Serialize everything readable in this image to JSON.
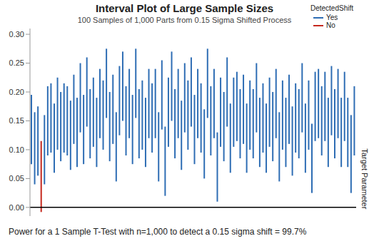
{
  "chart_data": {
    "type": "interval",
    "title": "Interval Plot of Large Sample Sizes",
    "subtitle": "100 Samples of 1,000 Parts from 0.15 Sigma Shifted Process",
    "annotation": "Power for a 1 Sample T-Test with n=1,000 to detect a 0.15 sigma shift = 99.7%",
    "categories": [
      null,
      null,
      null,
      null,
      null,
      null,
      null,
      null,
      null,
      null,
      null,
      null,
      null,
      null,
      null,
      null,
      null,
      null,
      null,
      null,
      null,
      null,
      null,
      null,
      null,
      null,
      null,
      null,
      null,
      null,
      null,
      null,
      null,
      null,
      null,
      null,
      null,
      null,
      null,
      null,
      null,
      null,
      null,
      null,
      null,
      null,
      null,
      null,
      null,
      null,
      null,
      null,
      null,
      null,
      null,
      null,
      null,
      null,
      null,
      null,
      null,
      null,
      null,
      null,
      null,
      null,
      null,
      null,
      null,
      null,
      null,
      null,
      null,
      null,
      null,
      null,
      null,
      null,
      null,
      null,
      null,
      null,
      null,
      null,
      null,
      null,
      null,
      null,
      null,
      null,
      null,
      null,
      null,
      null,
      null,
      null,
      null,
      null,
      null,
      null
    ],
    "lower": [
      0.075,
      0.04,
      0.055,
      -0.008,
      0.04,
      0.09,
      0.095,
      0.06,
      0.1,
      0.08,
      0.095,
      0.09,
      0.065,
      0.11,
      0.07,
      0.13,
      0.075,
      0.14,
      0.085,
      0.105,
      0.07,
      0.12,
      0.1,
      0.155,
      0.08,
      0.11,
      0.045,
      0.125,
      0.15,
      0.09,
      0.12,
      0.075,
      0.155,
      0.085,
      0.1,
      0.07,
      0.12,
      0.095,
      0.12,
      0.045,
      0.135,
      0.02,
      0.105,
      0.15,
      0.085,
      0.12,
      0.065,
      0.13,
      0.1,
      0.14,
      0.075,
      0.12,
      0.095,
      0.05,
      0.155,
      0.09,
      0.12,
      0.01,
      0.105,
      0.08,
      0.14,
      0.06,
      0.105,
      0.115,
      0.085,
      0.11,
      0.06,
      0.1,
      0.085,
      0.13,
      0.07,
      0.095,
      0.06,
      0.105,
      0.08,
      0.12,
      0.045,
      0.1,
      0.07,
      0.11,
      0.055,
      0.095,
      0.085,
      0.13,
      0.06,
      0.1,
      0.025,
      0.115,
      0.12,
      0.09,
      0.115,
      0.07,
      0.125,
      0.085,
      0.12,
      0.07,
      0.115,
      0.07,
      0.025,
      0.09
    ],
    "upper": [
      0.195,
      0.165,
      0.175,
      0.115,
      0.16,
      0.21,
      0.215,
      0.18,
      0.225,
      0.2,
      0.215,
      0.21,
      0.185,
      0.23,
      0.19,
      0.25,
      0.195,
      0.26,
      0.205,
      0.225,
      0.19,
      0.24,
      0.22,
      0.275,
      0.2,
      0.23,
      0.165,
      0.245,
      0.27,
      0.21,
      0.24,
      0.195,
      0.275,
      0.205,
      0.22,
      0.19,
      0.24,
      0.215,
      0.24,
      0.165,
      0.255,
      0.14,
      0.225,
      0.27,
      0.205,
      0.24,
      0.185,
      0.25,
      0.22,
      0.26,
      0.195,
      0.24,
      0.215,
      0.17,
      0.275,
      0.21,
      0.24,
      0.13,
      0.225,
      0.2,
      0.26,
      0.18,
      0.225,
      0.235,
      0.205,
      0.23,
      0.18,
      0.22,
      0.205,
      0.25,
      0.19,
      0.215,
      0.18,
      0.225,
      0.2,
      0.24,
      0.165,
      0.22,
      0.19,
      0.23,
      0.175,
      0.215,
      0.205,
      0.25,
      0.18,
      0.22,
      0.145,
      0.235,
      0.24,
      0.21,
      0.235,
      0.19,
      0.245,
      0.205,
      0.24,
      0.19,
      0.235,
      0.19,
      0.16,
      0.21
    ],
    "detected": [
      "Yes",
      "Yes",
      "Yes",
      "No",
      "Yes",
      "Yes",
      "Yes",
      "Yes",
      "Yes",
      "Yes",
      "Yes",
      "Yes",
      "Yes",
      "Yes",
      "Yes",
      "Yes",
      "Yes",
      "Yes",
      "Yes",
      "Yes",
      "Yes",
      "Yes",
      "Yes",
      "Yes",
      "Yes",
      "Yes",
      "Yes",
      "Yes",
      "Yes",
      "Yes",
      "Yes",
      "Yes",
      "Yes",
      "Yes",
      "Yes",
      "Yes",
      "Yes",
      "Yes",
      "Yes",
      "Yes",
      "Yes",
      "Yes",
      "Yes",
      "Yes",
      "Yes",
      "Yes",
      "Yes",
      "Yes",
      "Yes",
      "Yes",
      "Yes",
      "Yes",
      "Yes",
      "Yes",
      "Yes",
      "Yes",
      "Yes",
      "Yes",
      "Yes",
      "Yes",
      "Yes",
      "Yes",
      "Yes",
      "Yes",
      "Yes",
      "Yes",
      "Yes",
      "Yes",
      "Yes",
      "Yes",
      "Yes",
      "Yes",
      "Yes",
      "Yes",
      "Yes",
      "Yes",
      "Yes",
      "Yes",
      "Yes",
      "Yes",
      "Yes",
      "Yes",
      "Yes",
      "Yes",
      "Yes",
      "Yes",
      "Yes",
      "Yes",
      "Yes",
      "Yes",
      "Yes",
      "Yes",
      "Yes",
      "Yes",
      "Yes",
      "Yes",
      "Yes",
      "Yes",
      "Yes",
      "Yes"
    ],
    "legend_title": "DetectedShift",
    "series": [
      {
        "name": "Yes",
        "color": "#2e6db4"
      },
      {
        "name": "No",
        "color": "#c6281d"
      }
    ],
    "reference_line": {
      "value": 0,
      "label": "Target Parameter",
      "color": "#000000"
    },
    "ylim": [
      -0.015,
      0.31
    ],
    "yticks": [
      {
        "value": 0,
        "label": "0.00"
      },
      {
        "value": 0.05,
        "label": "0.05"
      },
      {
        "value": 0.1,
        "label": "0.10"
      },
      {
        "value": 0.15,
        "label": "0.15"
      },
      {
        "value": 0.2,
        "label": "0.20"
      },
      {
        "value": 0.25,
        "label": "0.25"
      },
      {
        "value": 0.3,
        "label": "0.30"
      }
    ],
    "legend": "upper right",
    "grid": false,
    "tick_labels": "y"
  }
}
